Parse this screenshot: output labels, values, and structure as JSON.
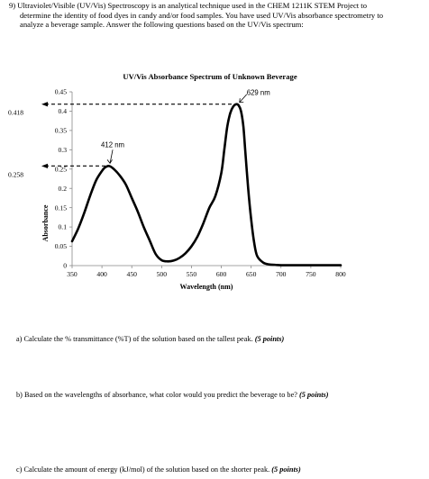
{
  "intro": {
    "line1": "9) Ultraviolet/Visible (UV/Vis) Spectroscopy is an analytical technique used in the CHEM 1211K STEM Project to",
    "line2": "determine the identity of food dyes in candy and/or food samples.  You have used UV/Vis absorbance spectrometry to",
    "line3": "analyze a beverage sample.  Answer the following questions based on the UV/Vis spectrum:"
  },
  "chart_data": {
    "type": "line",
    "title": "UV/Vis Absorbance Spectrum of Unknown Beverage",
    "xlabel": "Wavelength (nm)",
    "ylabel": "Absorbance",
    "xlim": [
      350,
      800
    ],
    "ylim": [
      0,
      0.45
    ],
    "xticks": [
      350,
      400,
      450,
      500,
      550,
      600,
      650,
      700,
      750,
      800
    ],
    "yticks": [
      0,
      0.05,
      0.1,
      0.15,
      0.2,
      0.25,
      0.3,
      0.35,
      0.4,
      0.45
    ],
    "grid": false,
    "series": [
      {
        "x": [
          350,
          360,
          370,
          380,
          390,
          400,
          405,
          412,
          420,
          430,
          440,
          450,
          460,
          470,
          480,
          490,
          500,
          510,
          520,
          530,
          540,
          550,
          560,
          570,
          580,
          590,
          600,
          605,
          610,
          615,
          620,
          625,
          629,
          633,
          637,
          640,
          645,
          650,
          655,
          660,
          670,
          680,
          690,
          700,
          720,
          750,
          780,
          800
        ],
        "y": [
          0.063,
          0.095,
          0.135,
          0.18,
          0.22,
          0.245,
          0.254,
          0.258,
          0.25,
          0.233,
          0.21,
          0.175,
          0.14,
          0.1,
          0.065,
          0.03,
          0.014,
          0.011,
          0.013,
          0.02,
          0.032,
          0.05,
          0.075,
          0.11,
          0.15,
          0.18,
          0.24,
          0.3,
          0.36,
          0.395,
          0.412,
          0.418,
          0.415,
          0.4,
          0.36,
          0.3,
          0.2,
          0.12,
          0.06,
          0.025,
          0.008,
          0.003,
          0.002,
          0.001,
          0.001,
          0.001,
          0.001,
          0.001
        ]
      }
    ],
    "annotations": [
      {
        "text": "629 nm",
        "x": 629,
        "y": 0.418
      },
      {
        "text": "412 nm",
        "x": 412,
        "y": 0.258
      }
    ],
    "reference_lines": [
      {
        "label": "0.418",
        "y": 0.418,
        "x_end": 629
      },
      {
        "label": "0.258",
        "y": 0.258,
        "x_end": 412
      }
    ]
  },
  "questions": [
    {
      "text": "a)   Calculate the % transmittance (%T) of the solution based on the tallest peak.",
      "points": "(5 points)"
    },
    {
      "text": "b)   Based on the wavelengths of absorbance, what color would you predict the beverage to be?",
      "points": "(5 points)"
    },
    {
      "text": "c)   Calculate the amount of energy (kJ/mol) of the solution based on the shorter peak.",
      "points": "(5 points)"
    }
  ]
}
